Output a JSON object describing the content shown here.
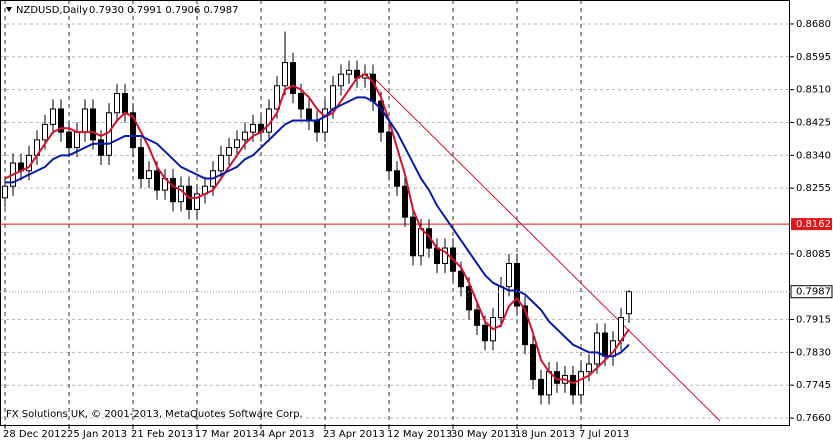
{
  "chart_data": {
    "type": "candlestick",
    "title": "NZDUSD,Daily",
    "subtitle": "0.7930 0.7991 0.7906 0.7987",
    "footer": "FX Solutions UK, © 2001-2013, MetaQuotes Software Corp.",
    "categories": [
      "28 Dec 2012",
      null,
      null,
      null,
      null,
      null,
      null,
      null,
      "25 Jan 2013",
      null,
      null,
      null,
      null,
      null,
      null,
      null,
      "21 Feb 2013",
      null,
      null,
      null,
      null,
      null,
      null,
      null,
      "17 Mar 2013",
      null,
      null,
      null,
      null,
      null,
      null,
      null,
      "4 Apr 2013",
      null,
      null,
      null,
      null,
      null,
      null,
      null,
      "23 Apr 2013",
      null,
      null,
      null,
      null,
      null,
      null,
      null,
      "12 May 2013",
      null,
      null,
      null,
      null,
      null,
      null,
      null,
      "30 May 2013",
      null,
      null,
      null,
      null,
      null,
      null,
      null,
      "18 Jun 2013",
      null,
      null,
      null,
      null,
      null,
      null,
      null,
      "7 Jul 2013",
      null,
      null,
      null,
      null,
      null,
      null
    ],
    "open": [
      0.823,
      0.826,
      0.832,
      0.83,
      0.834,
      0.838,
      0.842,
      0.846,
      0.84,
      0.836,
      0.84,
      0.846,
      0.838,
      0.834,
      0.845,
      0.85,
      0.845,
      0.836,
      0.828,
      0.83,
      0.825,
      0.828,
      0.822,
      0.826,
      0.82,
      0.824,
      0.826,
      0.83,
      0.834,
      0.836,
      0.838,
      0.84,
      0.842,
      0.84,
      0.846,
      0.852,
      0.858,
      0.85,
      0.846,
      0.843,
      0.84,
      0.846,
      0.852,
      0.855,
      0.856,
      0.854,
      0.855,
      0.848,
      0.84,
      0.83,
      0.826,
      0.818,
      0.808,
      0.815,
      0.81,
      0.806,
      0.81,
      0.804,
      0.8,
      0.794,
      0.79,
      0.786,
      0.792,
      0.8,
      0.806,
      0.795,
      0.785,
      0.776,
      0.772,
      0.778,
      0.775,
      0.777,
      0.772,
      0.778,
      0.78,
      0.788,
      0.782,
      0.786,
      0.793
    ],
    "high": [
      0.8285,
      0.8345,
      0.8345,
      0.8365,
      0.8405,
      0.8445,
      0.8485,
      0.8485,
      0.8425,
      0.8425,
      0.8485,
      0.8485,
      0.8405,
      0.8475,
      0.8525,
      0.8525,
      0.8475,
      0.8385,
      0.8325,
      0.8325,
      0.8305,
      0.8305,
      0.8285,
      0.8285,
      0.8265,
      0.8285,
      0.8325,
      0.8365,
      0.8385,
      0.8405,
      0.8425,
      0.8445,
      0.8445,
      0.8485,
      0.8545,
      0.866,
      0.8605,
      0.8525,
      0.8485,
      0.8455,
      0.8485,
      0.8545,
      0.8575,
      0.8585,
      0.8585,
      0.8575,
      0.8575,
      0.8505,
      0.8425,
      0.8325,
      0.8285,
      0.8205,
      0.8175,
      0.8175,
      0.8125,
      0.8125,
      0.8125,
      0.8065,
      0.8025,
      0.7965,
      0.7925,
      0.7945,
      0.8025,
      0.8085,
      0.8085,
      0.7975,
      0.7875,
      0.7785,
      0.7805,
      0.7805,
      0.7795,
      0.7795,
      0.7805,
      0.7825,
      0.7905,
      0.7905,
      0.7885,
      0.7945,
      0.7991
    ],
    "low": [
      0.8205,
      0.8235,
      0.8275,
      0.8275,
      0.8315,
      0.8355,
      0.8395,
      0.8375,
      0.8335,
      0.8335,
      0.8375,
      0.8355,
      0.8315,
      0.8315,
      0.8425,
      0.8425,
      0.8335,
      0.8255,
      0.8255,
      0.8225,
      0.8225,
      0.8195,
      0.8195,
      0.8175,
      0.8175,
      0.8215,
      0.8235,
      0.8275,
      0.8315,
      0.8335,
      0.8355,
      0.8375,
      0.8375,
      0.8375,
      0.8435,
      0.8495,
      0.8475,
      0.8435,
      0.8405,
      0.8375,
      0.8375,
      0.8435,
      0.8495,
      0.8525,
      0.8515,
      0.8515,
      0.8455,
      0.8375,
      0.8275,
      0.8235,
      0.8155,
      0.8055,
      0.8055,
      0.8075,
      0.8035,
      0.8035,
      0.8015,
      0.7975,
      0.7915,
      0.7875,
      0.7835,
      0.7835,
      0.7895,
      0.7975,
      0.7925,
      0.7825,
      0.7735,
      0.7695,
      0.7695,
      0.7725,
      0.7725,
      0.7695,
      0.7695,
      0.7755,
      0.7775,
      0.7795,
      0.7795,
      0.7835,
      0.7906
    ],
    "close": [
      0.826,
      0.832,
      0.83,
      0.834,
      0.838,
      0.842,
      0.846,
      0.84,
      0.836,
      0.84,
      0.846,
      0.838,
      0.834,
      0.845,
      0.85,
      0.845,
      0.836,
      0.828,
      0.83,
      0.825,
      0.828,
      0.822,
      0.826,
      0.82,
      0.824,
      0.826,
      0.83,
      0.834,
      0.836,
      0.838,
      0.84,
      0.842,
      0.84,
      0.846,
      0.852,
      0.858,
      0.85,
      0.846,
      0.843,
      0.84,
      0.846,
      0.852,
      0.855,
      0.856,
      0.854,
      0.855,
      0.848,
      0.84,
      0.83,
      0.826,
      0.818,
      0.808,
      0.815,
      0.81,
      0.806,
      0.81,
      0.804,
      0.8,
      0.794,
      0.79,
      0.786,
      0.792,
      0.8,
      0.806,
      0.795,
      0.785,
      0.776,
      0.772,
      0.778,
      0.775,
      0.777,
      0.772,
      0.778,
      0.78,
      0.788,
      0.782,
      0.786,
      0.792,
      0.7987
    ],
    "up_color": "#ffffff",
    "down_color": "#000000",
    "lines": [
      {
        "color": "#d4112f",
        "values": [
          0.828,
          0.829,
          0.83,
          0.831,
          0.834,
          0.837,
          0.84,
          0.841,
          0.841,
          0.84,
          0.84,
          0.84,
          0.839,
          0.84,
          0.843,
          0.845,
          0.844,
          0.84,
          0.836,
          0.831,
          0.828,
          0.826,
          0.825,
          0.823,
          0.823,
          0.824,
          0.825,
          0.828,
          0.831,
          0.834,
          0.837,
          0.839,
          0.84,
          0.842,
          0.845,
          0.851,
          0.852,
          0.851,
          0.849,
          0.846,
          0.844,
          0.845,
          0.848,
          0.851,
          0.854,
          0.855,
          0.853,
          0.849,
          0.843,
          0.836,
          0.829,
          0.82,
          0.815,
          0.813,
          0.81,
          0.809,
          0.807,
          0.805,
          0.801,
          0.796,
          0.791,
          0.789,
          0.79,
          0.795,
          0.797,
          0.794,
          0.788,
          0.781,
          0.778,
          0.776,
          0.776,
          0.775,
          0.776,
          0.777,
          0.779,
          0.781,
          0.783,
          0.786,
          0.789
        ]
      },
      {
        "color": "#0a1aa8",
        "values": [
          0.827,
          0.827,
          0.828,
          0.829,
          0.83,
          0.831,
          0.833,
          0.834,
          0.834,
          0.835,
          0.836,
          0.837,
          0.837,
          0.837,
          0.838,
          0.839,
          0.839,
          0.839,
          0.838,
          0.837,
          0.835,
          0.833,
          0.831,
          0.83,
          0.829,
          0.828,
          0.828,
          0.829,
          0.83,
          0.831,
          0.833,
          0.834,
          0.836,
          0.838,
          0.84,
          0.842,
          0.843,
          0.843,
          0.843,
          0.843,
          0.844,
          0.846,
          0.847,
          0.848,
          0.849,
          0.849,
          0.848,
          0.846,
          0.843,
          0.84,
          0.836,
          0.832,
          0.828,
          0.825,
          0.821,
          0.818,
          0.815,
          0.812,
          0.809,
          0.806,
          0.803,
          0.801,
          0.8,
          0.799,
          0.799,
          0.798,
          0.796,
          0.794,
          0.791,
          0.789,
          0.787,
          0.785,
          0.784,
          0.783,
          0.783,
          0.782,
          0.782,
          0.783,
          0.785
        ]
      }
    ],
    "trendline": {
      "color": "#d4112f",
      "x": [
        45.5,
        89.4
      ],
      "values": [
        0.8553,
        0.7652
      ]
    },
    "hline": {
      "value": 0.8162,
      "label": "0.8162",
      "color": "#e0161b"
    },
    "price_line": {
      "value": 0.7987,
      "label": "0.7987"
    },
    "ylim": [
      0.7642,
      0.8742
    ],
    "yticks": [
      {
        "value": 0.868,
        "label": "0.8680"
      },
      {
        "value": 0.8595,
        "label": "0.8595"
      },
      {
        "value": 0.851,
        "label": "0.8510"
      },
      {
        "value": 0.8425,
        "label": "0.8425"
      },
      {
        "value": 0.834,
        "label": "0.8340"
      },
      {
        "value": 0.8255,
        "label": "0.8255"
      },
      {
        "value": 0.8085,
        "label": "0.8085"
      },
      {
        "value": 0.7915,
        "label": "0.7915"
      },
      {
        "value": 0.783,
        "label": "0.7830"
      },
      {
        "value": 0.7745,
        "label": "0.7745"
      },
      {
        "value": 0.766,
        "label": "0.7660"
      }
    ],
    "grid": true
  }
}
